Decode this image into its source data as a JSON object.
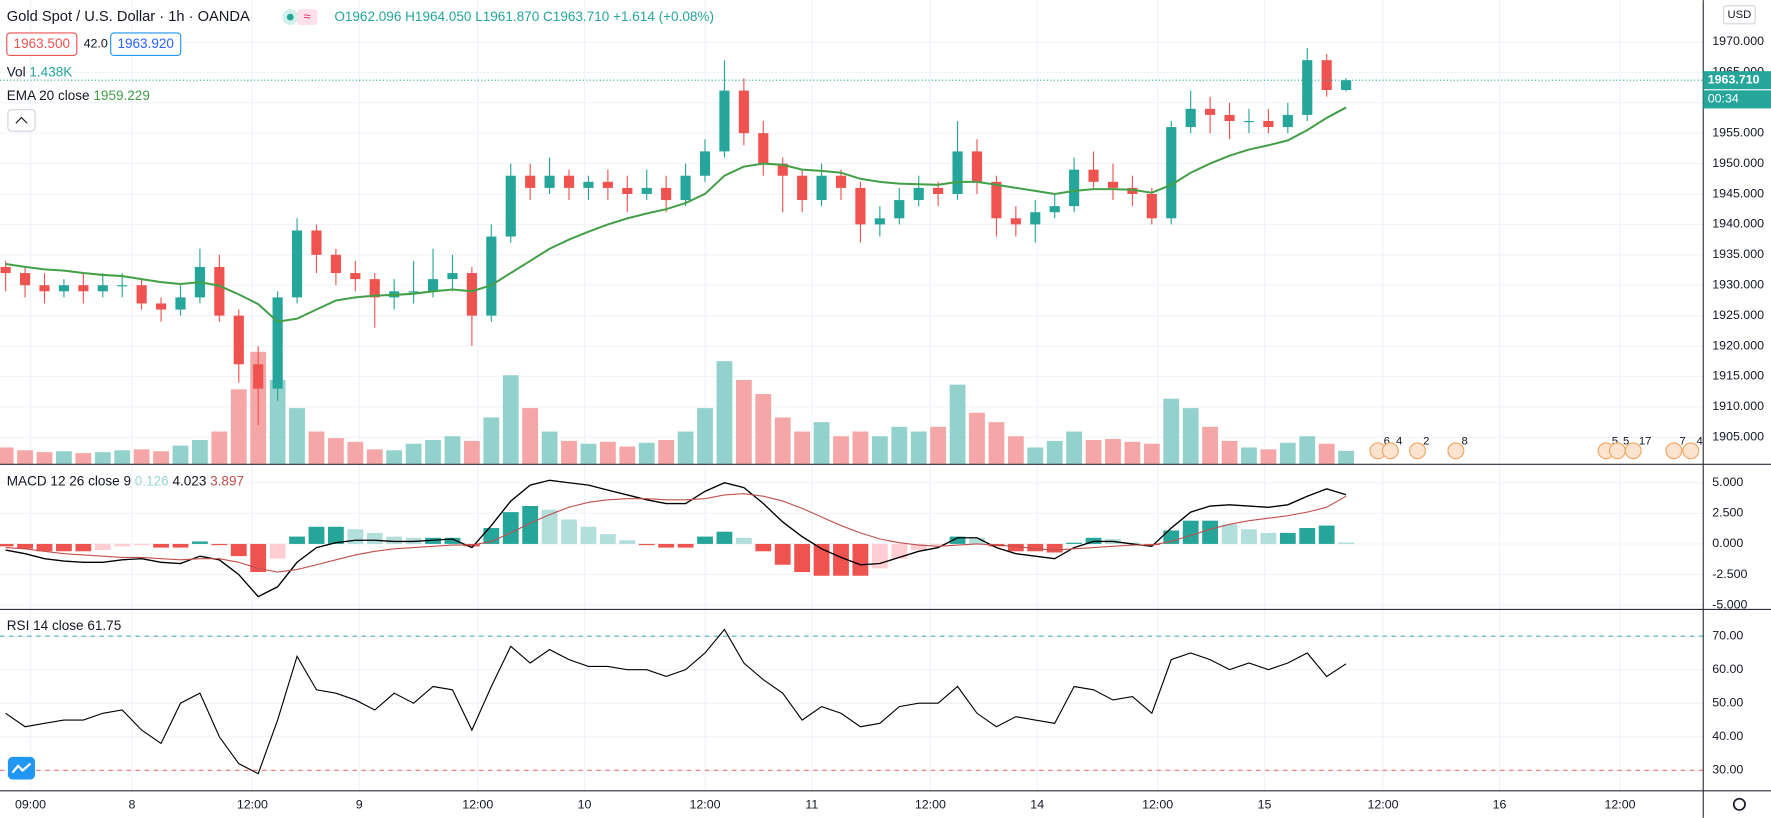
{
  "header": {
    "symbol": "Gold Spot / U.S. Dollar · 1h · OANDA",
    "open": "O1962.096",
    "high": "H1964.050",
    "low": "L1961.870",
    "close": "C1963.710",
    "change": "+1.614 (+0.08%)",
    "sell": "1963.500",
    "spread": "42.0",
    "buy": "1963.920"
  },
  "chart_data": [
    {
      "type": "candlestick",
      "up_color": "#26a69a",
      "down_color": "#ef5350",
      "candles": [
        [
          1933,
          1934,
          1929,
          1932
        ],
        [
          1932,
          1933,
          1928,
          1930
        ],
        [
          1930,
          1932,
          1927,
          1929
        ],
        [
          1929,
          1931,
          1928,
          1930
        ],
        [
          1930,
          1932,
          1927,
          1929
        ],
        [
          1929,
          1932,
          1928,
          1930
        ],
        [
          1930,
          1932,
          1928,
          1930
        ],
        [
          1930,
          1931,
          1926,
          1927
        ],
        [
          1927,
          1928,
          1924,
          1926
        ],
        [
          1926,
          1930,
          1925,
          1928
        ],
        [
          1928,
          1936,
          1927,
          1933
        ],
        [
          1933,
          1935,
          1924,
          1925
        ],
        [
          1925,
          1926,
          1914,
          1917
        ],
        [
          1917,
          1920,
          1907,
          1913
        ],
        [
          1913,
          1929,
          1911,
          1928
        ],
        [
          1928,
          1941,
          1927,
          1939
        ],
        [
          1939,
          1940,
          1932,
          1935
        ],
        [
          1935,
          1936,
          1930,
          1932
        ],
        [
          1932,
          1934,
          1929,
          1931
        ],
        [
          1931,
          1932,
          1923,
          1928
        ],
        [
          1928,
          1931,
          1926,
          1929
        ],
        [
          1929,
          1934,
          1927,
          1929
        ],
        [
          1929,
          1936,
          1928,
          1931
        ],
        [
          1931,
          1935,
          1929,
          1932
        ],
        [
          1932,
          1933,
          1920,
          1925
        ],
        [
          1925,
          1940,
          1924,
          1938
        ],
        [
          1938,
          1950,
          1937,
          1948
        ],
        [
          1948,
          1950,
          1944,
          1946
        ],
        [
          1946,
          1951,
          1945,
          1948
        ],
        [
          1948,
          1949,
          1944,
          1946
        ],
        [
          1946,
          1948,
          1944,
          1947
        ],
        [
          1947,
          1949,
          1944,
          1946
        ],
        [
          1946,
          1948,
          1942,
          1945
        ],
        [
          1945,
          1949,
          1944,
          1946
        ],
        [
          1946,
          1948,
          1942,
          1944
        ],
        [
          1944,
          1950,
          1943,
          1948
        ],
        [
          1948,
          1954,
          1947,
          1952
        ],
        [
          1952,
          1967,
          1951,
          1962
        ],
        [
          1962,
          1964,
          1953,
          1955
        ],
        [
          1955,
          1957,
          1948,
          1950
        ],
        [
          1950,
          1951,
          1942,
          1948
        ],
        [
          1948,
          1949,
          1942,
          1944
        ],
        [
          1944,
          1950,
          1943,
          1948
        ],
        [
          1948,
          1949,
          1944,
          1946
        ],
        [
          1946,
          1947,
          1937,
          1940
        ],
        [
          1940,
          1943,
          1938,
          1941
        ],
        [
          1941,
          1946,
          1940,
          1944
        ],
        [
          1944,
          1948,
          1943,
          1946
        ],
        [
          1946,
          1947,
          1943,
          1945
        ],
        [
          1945,
          1957,
          1944,
          1952
        ],
        [
          1952,
          1954,
          1945,
          1947
        ],
        [
          1947,
          1948,
          1938,
          1941
        ],
        [
          1941,
          1943,
          1938,
          1940
        ],
        [
          1940,
          1944,
          1937,
          1942
        ],
        [
          1942,
          1945,
          1941,
          1943
        ],
        [
          1943,
          1951,
          1942,
          1949
        ],
        [
          1949,
          1952,
          1946,
          1947
        ],
        [
          1947,
          1950,
          1944,
          1946
        ],
        [
          1946,
          1948,
          1943,
          1945
        ],
        [
          1945,
          1946,
          1940,
          1941
        ],
        [
          1941,
          1957,
          1940,
          1956
        ],
        [
          1956,
          1962,
          1955,
          1959
        ],
        [
          1959,
          1961,
          1955,
          1958
        ],
        [
          1958,
          1960,
          1954,
          1957
        ],
        [
          1957,
          1959,
          1955,
          1957
        ],
        [
          1957,
          1959,
          1955,
          1956
        ],
        [
          1956,
          1960,
          1955,
          1958
        ],
        [
          1958,
          1969,
          1957,
          1967
        ],
        [
          1967,
          1968,
          1961,
          1962.096
        ],
        [
          1962.096,
          1964.05,
          1961.87,
          1963.71
        ]
      ],
      "ylim": [
        1900.55,
        1976.87
      ],
      "yticks": [
        {
          "value": 1970,
          "label": "1970.000"
        },
        {
          "value": 1965,
          "label": "1965.000"
        },
        {
          "value": 1960,
          "label": "1960.000"
        },
        {
          "value": 1955,
          "label": "1955.000"
        },
        {
          "value": 1950,
          "label": "1950.000"
        },
        {
          "value": 1945,
          "label": "1945.000"
        },
        {
          "value": 1940,
          "label": "1940.000"
        },
        {
          "value": 1935,
          "label": "1935.000"
        },
        {
          "value": 1930,
          "label": "1930.000"
        },
        {
          "value": 1925,
          "label": "1925.000"
        },
        {
          "value": 1920,
          "label": "1920.000"
        },
        {
          "value": 1915,
          "label": "1915.000"
        },
        {
          "value": 1910,
          "label": "1910.000"
        },
        {
          "value": 1905,
          "label": "1905.000"
        }
      ],
      "xticks": [
        {
          "value": 1.28,
          "label": "09:00"
        },
        {
          "value": 6.5,
          "label": "8"
        },
        {
          "value": 12.7,
          "label": "12:00"
        },
        {
          "value": 18.2,
          "label": "9"
        },
        {
          "value": 24.3,
          "label": "12:00"
        },
        {
          "value": 29.8,
          "label": "10"
        },
        {
          "value": 36,
          "label": "12:00"
        },
        {
          "value": 41.5,
          "label": "11"
        },
        {
          "value": 47.6,
          "label": "12:00"
        },
        {
          "value": 53.1,
          "label": "14"
        },
        {
          "value": 59.3,
          "label": "12:00"
        },
        {
          "value": 64.8,
          "label": "15"
        },
        {
          "value": 70.9,
          "label": "12:00"
        },
        {
          "value": 76.9,
          "label": "16"
        },
        {
          "value": 83.1,
          "label": "12:00"
        }
      ],
      "grid": true,
      "last_price": {
        "value": 1963.71,
        "label": "1963.710"
      },
      "countdown": "00:34",
      "currency": "USD",
      "overlays": [
        {
          "type": "line",
          "name": "EMA 20 close",
          "value_label": "1959.229",
          "color": "#43a047",
          "values": [
            1933.5,
            1933,
            1932.6,
            1932.4,
            1932,
            1931.7,
            1931.5,
            1931,
            1930.5,
            1930.2,
            1930.5,
            1929.9,
            1928.5,
            1926.9,
            1924,
            1924.5,
            1926,
            1927.5,
            1928,
            1928.3,
            1928.4,
            1928.6,
            1929,
            1929.3,
            1929,
            1930,
            1932,
            1934,
            1936,
            1937.5,
            1938.8,
            1940,
            1941,
            1941.8,
            1942.5,
            1943.5,
            1945,
            1948,
            1949.5,
            1950,
            1949.8,
            1949,
            1948.8,
            1948.5,
            1947.5,
            1947,
            1946.7,
            1946.6,
            1946.5,
            1947,
            1947,
            1946.5,
            1946,
            1945.5,
            1945,
            1945.5,
            1945.8,
            1945.8,
            1945.7,
            1945.2,
            1946.5,
            1948.5,
            1950,
            1951.3,
            1952.3,
            1953,
            1953.8,
            1955.5,
            1957.5,
            1959.229
          ]
        }
      ],
      "volume": {
        "name": "Vol",
        "value_label": "1.438K",
        "ylim": [
          0,
          49.5
        ],
        "up_color": "#93d2cc",
        "down_color": "#f5a6a6",
        "values": [
          1.8,
          1.5,
          1.3,
          1.4,
          1.2,
          1.3,
          1.5,
          1.6,
          1.4,
          2.0,
          2.6,
          3.5,
          8,
          12,
          9,
          6,
          3.5,
          2.8,
          2.4,
          1.6,
          1.5,
          2.2,
          2.6,
          3,
          2.5,
          5,
          9.5,
          6,
          3.5,
          2.5,
          2.2,
          2.4,
          1.9,
          2.3,
          2.6,
          3.5,
          6,
          11,
          9,
          7.5,
          5,
          3.5,
          4.5,
          3,
          3.5,
          3,
          4,
          3.5,
          4,
          8.5,
          5.5,
          4.5,
          3,
          1.8,
          2.5,
          3.5,
          2.6,
          2.7,
          2.4,
          2.2,
          7,
          6,
          4,
          2.5,
          1.8,
          1.6,
          2.3,
          3,
          2.2,
          1.438
        ]
      },
      "events": [
        "6",
        "4",
        "2",
        "8",
        "5",
        "5",
        "17",
        "7",
        "4"
      ]
    },
    {
      "type": "macd",
      "name": "MACD 12 26 close 9",
      "value_labels": [
        "0.126",
        "4.023",
        "3.897"
      ],
      "macd_color": "#000000",
      "signal_color": "#c0504d",
      "histogram": [
        -0.2,
        -0.4,
        -0.6,
        -0.6,
        -0.6,
        -0.5,
        -0.2,
        -0.1,
        -0.3,
        -0.3,
        0.2,
        -0.1,
        -1.0,
        -2.3,
        -1.2,
        0.6,
        1.4,
        1.4,
        1.2,
        0.9,
        0.6,
        0.5,
        0.5,
        0.5,
        -0.2,
        1.3,
        2.6,
        3.1,
        2.8,
        2.0,
        1.4,
        0.8,
        0.3,
        -0.1,
        -0.3,
        -0.3,
        0.6,
        1.0,
        0.5,
        -0.6,
        -1.7,
        -2.3,
        -2.6,
        -2.6,
        -2.6,
        -2.0,
        -1.2,
        -0.5,
        -0.1,
        0.6,
        0.5,
        -0.2,
        -0.6,
        -0.6,
        -0.7,
        0.1,
        0.5,
        0.4,
        0.1,
        -0.1,
        1.1,
        1.9,
        1.9,
        1.6,
        1.2,
        0.9,
        0.9,
        1.3,
        1.5,
        0.126
      ],
      "macd": [
        -0.5,
        -0.8,
        -1.2,
        -1.4,
        -1.5,
        -1.5,
        -1.3,
        -1.2,
        -1.5,
        -1.6,
        -1.0,
        -1.3,
        -2.5,
        -4.3,
        -3.5,
        -1.5,
        -0.3,
        0.1,
        0.3,
        0.3,
        0.2,
        0.2,
        0.3,
        0.4,
        -0.3,
        1.5,
        3.5,
        4.8,
        5.2,
        5.0,
        4.8,
        4.4,
        4.0,
        3.6,
        3.3,
        3.3,
        4.3,
        5.0,
        4.6,
        3.3,
        1.8,
        0.6,
        -0.4,
        -1.1,
        -1.7,
        -1.6,
        -1.1,
        -0.6,
        -0.3,
        0.5,
        0.5,
        -0.3,
        -0.8,
        -1.0,
        -1.2,
        -0.3,
        0.2,
        0.2,
        0.0,
        -0.2,
        1.3,
        2.6,
        3.1,
        3.2,
        3.1,
        3.0,
        3.2,
        3.9,
        4.5,
        4.023
      ],
      "signal": [
        -0.3,
        -0.4,
        -0.6,
        -0.8,
        -0.9,
        -1.0,
        -1.1,
        -1.1,
        -1.2,
        -1.3,
        -1.2,
        -1.2,
        -1.5,
        -2.0,
        -2.3,
        -2.1,
        -1.7,
        -1.3,
        -0.9,
        -0.6,
        -0.4,
        -0.3,
        -0.2,
        -0.1,
        -0.1,
        0.2,
        0.9,
        1.7,
        2.4,
        3.0,
        3.4,
        3.6,
        3.7,
        3.7,
        3.6,
        3.6,
        3.7,
        4.0,
        4.1,
        3.9,
        3.5,
        2.9,
        2.2,
        1.5,
        0.9,
        0.4,
        0.1,
        -0.1,
        -0.2,
        -0.1,
        0.0,
        -0.1,
        -0.2,
        -0.4,
        -0.5,
        -0.4,
        -0.3,
        -0.2,
        -0.1,
        -0.1,
        0.2,
        0.7,
        1.2,
        1.6,
        1.9,
        2.1,
        2.3,
        2.6,
        3.0,
        3.897
      ],
      "ylim": [
        -5.31,
        6.41
      ],
      "yticks": [
        {
          "value": 5,
          "label": "5.000"
        },
        {
          "value": 2.5,
          "label": "2.500"
        },
        {
          "value": 0,
          "label": "0.000"
        },
        {
          "value": -2.5,
          "label": "-2.500"
        },
        {
          "value": -5,
          "label": "-5.000"
        }
      ]
    },
    {
      "type": "rsi",
      "name": "RSI 14 close",
      "value_label": "61.75",
      "color": "#000000",
      "values": [
        47,
        43,
        44,
        45,
        45,
        47,
        48,
        42,
        38,
        50,
        53,
        40,
        32,
        29,
        45,
        64,
        54,
        53,
        51,
        48,
        53,
        50,
        55,
        54,
        42,
        55,
        67,
        62,
        66,
        63,
        61,
        61,
        60,
        60,
        58,
        60,
        65,
        72,
        62,
        57,
        53,
        45,
        49,
        47,
        43,
        44,
        49,
        50,
        50,
        55,
        47,
        43,
        46,
        45,
        44,
        55,
        54,
        51,
        52,
        47,
        63,
        65,
        63,
        60,
        62,
        60,
        62,
        65,
        58,
        61.75
      ],
      "bands": [
        70,
        30
      ],
      "ylim": [
        23.9,
        77.8
      ],
      "yticks": [
        {
          "value": 70,
          "label": "70.00"
        },
        {
          "value": 60,
          "label": "60.00"
        },
        {
          "value": 50,
          "label": "50.00"
        },
        {
          "value": 40,
          "label": "40.00"
        },
        {
          "value": 30,
          "label": "30.00"
        }
      ]
    }
  ]
}
